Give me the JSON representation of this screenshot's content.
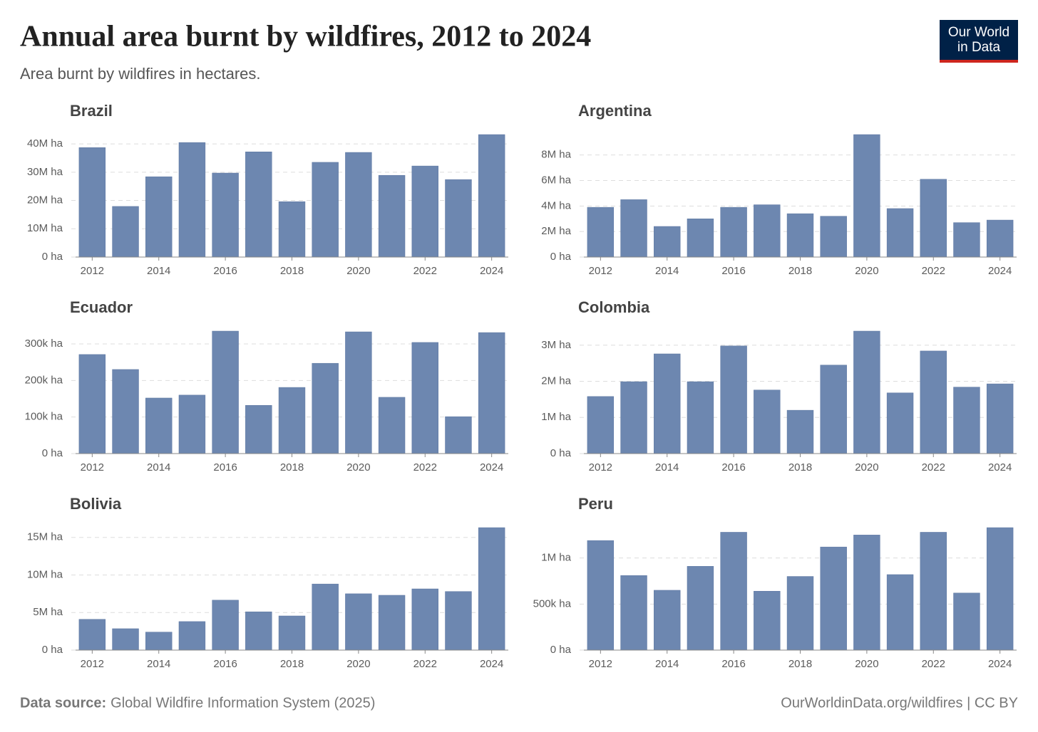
{
  "title": "Annual area burnt by wildfires, 2012 to 2024",
  "subtitle": "Area burnt by wildfires in hectares.",
  "logo_lines": [
    "Our World",
    "in Data"
  ],
  "source_label": "Data source:",
  "source": "Global Wildfire Information System (2025)",
  "url": "OurWorldinData.org/wildfires | CC BY",
  "chart_data": [
    {
      "type": "bar",
      "title": "Brazil",
      "color": "#6d87b0",
      "grid": true,
      "x": [
        2012,
        2013,
        2014,
        2015,
        2016,
        2017,
        2018,
        2019,
        2020,
        2021,
        2022,
        2023,
        2024
      ],
      "values": [
        38700000,
        17900000,
        28400000,
        40500000,
        29700000,
        37200000,
        19600000,
        33500000,
        37000000,
        28900000,
        32200000,
        27400000,
        43300000
      ],
      "xlim": [
        2011.5,
        2024.5
      ],
      "xticks": [
        2012,
        2014,
        2016,
        2018,
        2020,
        2022,
        2024
      ],
      "ylim": [
        0,
        43300000
      ],
      "yticks": [
        {
          "value": 0,
          "label": "0 ha"
        },
        {
          "value": 10000000,
          "label": "10M ha"
        },
        {
          "value": 20000000,
          "label": "20M ha"
        },
        {
          "value": 30000000,
          "label": "30M ha"
        },
        {
          "value": 40000000,
          "label": "40M ha"
        }
      ]
    },
    {
      "type": "bar",
      "title": "Argentina",
      "color": "#6d87b0",
      "grid": true,
      "x": [
        2012,
        2013,
        2014,
        2015,
        2016,
        2017,
        2018,
        2019,
        2020,
        2021,
        2022,
        2023,
        2024
      ],
      "values": [
        3900000,
        4500000,
        2400000,
        3000000,
        3900000,
        4100000,
        3400000,
        3200000,
        9600000,
        3800000,
        6100000,
        2700000,
        2900000
      ],
      "xlim": [
        2011.5,
        2024.5
      ],
      "xticks": [
        2012,
        2014,
        2016,
        2018,
        2020,
        2022,
        2024
      ],
      "ylim": [
        0,
        9600000
      ],
      "yticks": [
        {
          "value": 0,
          "label": "0 ha"
        },
        {
          "value": 2000000,
          "label": "2M ha"
        },
        {
          "value": 4000000,
          "label": "4M ha"
        },
        {
          "value": 6000000,
          "label": "6M ha"
        },
        {
          "value": 8000000,
          "label": "8M ha"
        }
      ]
    },
    {
      "type": "bar",
      "title": "Ecuador",
      "color": "#6d87b0",
      "grid": true,
      "x": [
        2012,
        2013,
        2014,
        2015,
        2016,
        2017,
        2018,
        2019,
        2020,
        2021,
        2022,
        2023,
        2024
      ],
      "values": [
        271000,
        230000,
        152000,
        160000,
        335000,
        132000,
        181000,
        247000,
        333000,
        154000,
        304000,
        101000,
        331000
      ],
      "xlim": [
        2011.5,
        2024.5
      ],
      "xticks": [
        2012,
        2014,
        2016,
        2018,
        2020,
        2022,
        2024
      ],
      "ylim": [
        0,
        335000
      ],
      "yticks": [
        {
          "value": 0,
          "label": "0 ha"
        },
        {
          "value": 100000,
          "label": "100k ha"
        },
        {
          "value": 200000,
          "label": "200k ha"
        },
        {
          "value": 300000,
          "label": "300k ha"
        }
      ]
    },
    {
      "type": "bar",
      "title": "Colombia",
      "color": "#6d87b0",
      "grid": true,
      "x": [
        2012,
        2013,
        2014,
        2015,
        2016,
        2017,
        2018,
        2019,
        2020,
        2021,
        2022,
        2023,
        2024
      ],
      "values": [
        1580000,
        1990000,
        2760000,
        1990000,
        2980000,
        1760000,
        1200000,
        2450000,
        3390000,
        1680000,
        2840000,
        1840000,
        1930000
      ],
      "xlim": [
        2011.5,
        2024.5
      ],
      "xticks": [
        2012,
        2014,
        2016,
        2018,
        2020,
        2022,
        2024
      ],
      "ylim": [
        0,
        3390000
      ],
      "yticks": [
        {
          "value": 0,
          "label": "0 ha"
        },
        {
          "value": 1000000,
          "label": "1M ha"
        },
        {
          "value": 2000000,
          "label": "2M ha"
        },
        {
          "value": 3000000,
          "label": "3M ha"
        }
      ]
    },
    {
      "type": "bar",
      "title": "Bolivia",
      "color": "#6d87b0",
      "grid": true,
      "x": [
        2012,
        2013,
        2014,
        2015,
        2016,
        2017,
        2018,
        2019,
        2020,
        2021,
        2022,
        2023,
        2024
      ],
      "values": [
        4100000,
        2850000,
        2400000,
        3800000,
        6650000,
        5100000,
        4550000,
        8800000,
        7500000,
        7300000,
        8150000,
        7800000,
        16300000
      ],
      "xlim": [
        2011.5,
        2024.5
      ],
      "xticks": [
        2012,
        2014,
        2016,
        2018,
        2020,
        2022,
        2024
      ],
      "ylim": [
        0,
        16300000
      ],
      "yticks": [
        {
          "value": 0,
          "label": "0 ha"
        },
        {
          "value": 5000000,
          "label": "5M ha"
        },
        {
          "value": 10000000,
          "label": "10M ha"
        },
        {
          "value": 15000000,
          "label": "15M ha"
        }
      ]
    },
    {
      "type": "bar",
      "title": "Peru",
      "color": "#6d87b0",
      "grid": true,
      "x": [
        2012,
        2013,
        2014,
        2015,
        2016,
        2017,
        2018,
        2019,
        2020,
        2021,
        2022,
        2023,
        2024
      ],
      "values": [
        1190000,
        810000,
        650000,
        910000,
        1280000,
        640000,
        800000,
        1120000,
        1250000,
        820000,
        1280000,
        620000,
        1330000
      ],
      "xlim": [
        2011.5,
        2024.5
      ],
      "xticks": [
        2012,
        2014,
        2016,
        2018,
        2020,
        2022,
        2024
      ],
      "ylim": [
        0,
        1330000
      ],
      "yticks": [
        {
          "value": 0,
          "label": "0 ha"
        },
        {
          "value": 500000,
          "label": "500k ha"
        },
        {
          "value": 1000000,
          "label": "1M ha"
        }
      ]
    }
  ]
}
